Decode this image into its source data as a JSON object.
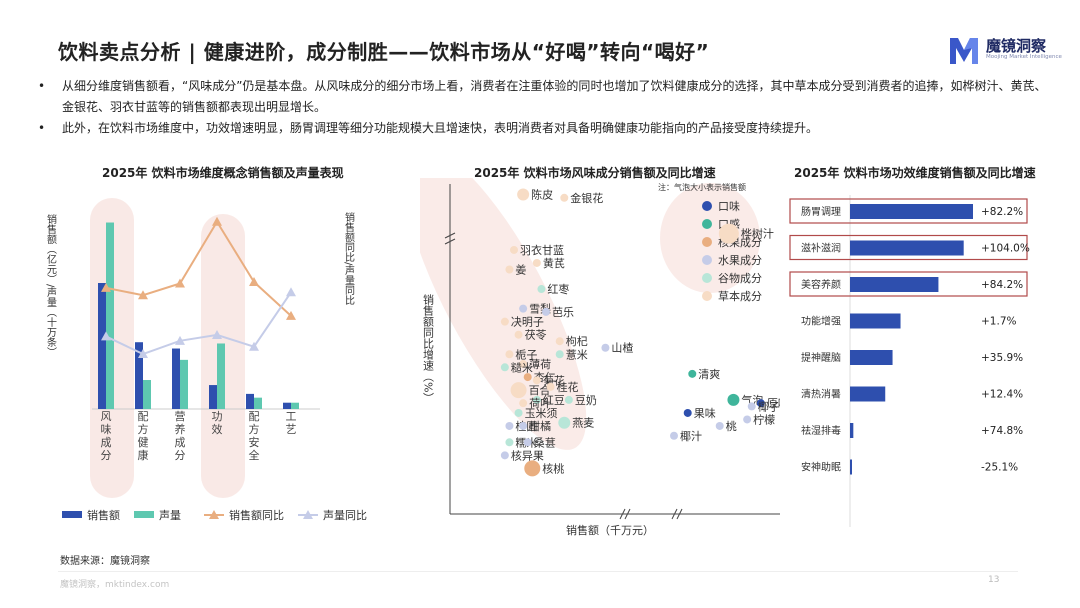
{
  "header": {
    "title": "饮料卖点分析 | 健康进阶，成分制胜——饮料市场从“好喝”转向“喝好”",
    "logo_name": "魔镜洞察",
    "logo_sub": "Moojing Market Intelligence"
  },
  "bullets": [
    {
      "dot": "•",
      "text": "从细分维度销售额看，“风味成分”仍是基本盘。从风味成分的细分市场上看，消费者在注重体验的同时也增加了饮料健康成分的选择，其中草本成分受到消费者的追捧，如桦树汁、黄芪、金银花、羽衣甘蓝等的销售额都表现出明显增长。"
    },
    {
      "dot": "•",
      "text": "此外，在饮料市场维度中，功效增速明显，肠胃调理等细分功能规模大且增速快，表明消费者对具备明确健康功能指向的产品接受度持续提升。"
    }
  ],
  "chart_data": [
    {
      "type": "bar",
      "title": "2025年 饮料市场维度概念销售额及声量表现",
      "categories": [
        "风味成分",
        "配方健康",
        "营养成分",
        "功效",
        "配方安全",
        "工艺"
      ],
      "ylabel_left": "销售额（亿元）/声量（十万条）",
      "ylabel_right": "销售额同比/声量同比",
      "series": [
        {
          "name": "销售额",
          "kind": "bar",
          "color": "#2E4FAE",
          "values": [
            100,
            53,
            48,
            19,
            12,
            5
          ]
        },
        {
          "name": "声量",
          "kind": "bar",
          "color": "#5EC8B0",
          "values": [
            148,
            23,
            39,
            52,
            9,
            5
          ]
        },
        {
          "name": "销售额同比",
          "kind": "line",
          "color": "#E9AE80",
          "values": [
            0.3,
            0.25,
            0.33,
            0.75,
            0.34,
            0.11
          ]
        },
        {
          "name": "声量同比",
          "kind": "line",
          "color": "#C5CCE8",
          "values": [
            -0.03,
            -0.15,
            -0.06,
            -0.02,
            -0.1,
            0.27
          ]
        }
      ]
    },
    {
      "type": "scatter",
      "title": "2025年 饮料市场风味成分销售额及同比增速",
      "note": "注：气泡大小表示销售额",
      "xlabel": "销售额（千万元）",
      "ylabel": "销售额同比增速（%）",
      "legend": [
        {
          "name": "口味",
          "color": "#2E4FAE"
        },
        {
          "name": "口感",
          "color": "#3FB59B"
        },
        {
          "name": "核果成分",
          "color": "#E9AE80"
        },
        {
          "name": "水果成分",
          "color": "#C5CCE8"
        },
        {
          "name": "谷物成分",
          "color": "#B8E6D8"
        },
        {
          "name": "草本成分",
          "color": "#F7DCC5"
        }
      ],
      "points": [
        {
          "label": "陈皮",
          "group": "草本成分",
          "x": 1.6,
          "y": 98,
          "size": 2
        },
        {
          "label": "金银花",
          "group": "草本成分",
          "x": 2.5,
          "y": 97,
          "size": 1
        },
        {
          "label": "桦树汁",
          "group": "草本成分",
          "x": 6.1,
          "y": 86,
          "size": 4
        },
        {
          "label": "羽衣甘蓝",
          "group": "草本成分",
          "x": 1.4,
          "y": 81,
          "size": 1
        },
        {
          "label": "黄芪",
          "group": "草本成分",
          "x": 1.9,
          "y": 77,
          "size": 1
        },
        {
          "label": "姜",
          "group": "草本成分",
          "x": 1.3,
          "y": 75,
          "size": 1
        },
        {
          "label": "红枣",
          "group": "谷物成分",
          "x": 2.0,
          "y": 69,
          "size": 1
        },
        {
          "label": "雪梨",
          "group": "水果成分",
          "x": 1.6,
          "y": 63,
          "size": 1
        },
        {
          "label": "芭乐",
          "group": "水果成分",
          "x": 2.1,
          "y": 62,
          "size": 1
        },
        {
          "label": "决明子",
          "group": "草本成分",
          "x": 1.2,
          "y": 59,
          "size": 1
        },
        {
          "label": "茯苓",
          "group": "草本成分",
          "x": 1.5,
          "y": 55,
          "size": 1
        },
        {
          "label": "枸杞",
          "group": "草本成分",
          "x": 2.4,
          "y": 53,
          "size": 1
        },
        {
          "label": "山楂",
          "group": "水果成分",
          "x": 3.4,
          "y": 51,
          "size": 1
        },
        {
          "label": "薏米",
          "group": "谷物成分",
          "x": 2.4,
          "y": 49,
          "size": 1
        },
        {
          "label": "栀子",
          "group": "草本成分",
          "x": 1.3,
          "y": 49,
          "size": 1
        },
        {
          "label": "薄荷",
          "group": "草本成分",
          "x": 1.6,
          "y": 46,
          "size": 1
        },
        {
          "label": "糙米",
          "group": "谷物成分",
          "x": 1.2,
          "y": 45,
          "size": 1
        },
        {
          "label": "杏仁",
          "group": "核果成分",
          "x": 1.7,
          "y": 42,
          "size": 1
        },
        {
          "label": "菊花",
          "group": "草本成分",
          "x": 1.9,
          "y": 41,
          "size": 1
        },
        {
          "label": "百合",
          "group": "草本成分",
          "x": 1.5,
          "y": 38,
          "size": 3
        },
        {
          "label": "桂花",
          "group": "草本成分",
          "x": 2.2,
          "y": 39,
          "size": 1
        },
        {
          "label": "清爽",
          "group": "口感",
          "x": 5.3,
          "y": 43,
          "size": 1
        },
        {
          "label": "气泡",
          "group": "口感",
          "x": 6.2,
          "y": 35,
          "size": 2
        },
        {
          "label": "红豆",
          "group": "谷物成分",
          "x": 1.9,
          "y": 35,
          "size": 1
        },
        {
          "label": "豆奶",
          "group": "谷物成分",
          "x": 2.6,
          "y": 35,
          "size": 1
        },
        {
          "label": "原味",
          "group": "口味",
          "x": 6.8,
          "y": 34,
          "size": 1
        },
        {
          "label": "荷叶",
          "group": "草本成分",
          "x": 1.6,
          "y": 34,
          "size": 1
        },
        {
          "label": "椰子",
          "group": "水果成分",
          "x": 6.6,
          "y": 33,
          "size": 1
        },
        {
          "label": "玉米须",
          "group": "谷物成分",
          "x": 1.5,
          "y": 31,
          "size": 1
        },
        {
          "label": "果味",
          "group": "口味",
          "x": 5.2,
          "y": 31,
          "size": 1
        },
        {
          "label": "柠檬",
          "group": "水果成分",
          "x": 6.5,
          "y": 29,
          "size": 1
        },
        {
          "label": "燕麦",
          "group": "谷物成分",
          "x": 2.5,
          "y": 28,
          "size": 2
        },
        {
          "label": "桂圆",
          "group": "水果成分",
          "x": 1.3,
          "y": 27,
          "size": 1
        },
        {
          "label": "柑橘",
          "group": "水果成分",
          "x": 1.6,
          "y": 27,
          "size": 1
        },
        {
          "label": "桃",
          "group": "水果成分",
          "x": 5.9,
          "y": 27,
          "size": 1
        },
        {
          "label": "椰汁",
          "group": "水果成分",
          "x": 4.9,
          "y": 24,
          "size": 1
        },
        {
          "label": "糯米",
          "group": "谷物成分",
          "x": 1.3,
          "y": 22,
          "size": 1
        },
        {
          "label": "桑葚",
          "group": "水果成分",
          "x": 1.7,
          "y": 22,
          "size": 1
        },
        {
          "label": "核异果",
          "group": "水果成分",
          "x": 1.2,
          "y": 18,
          "size": 1
        },
        {
          "label": "核桃",
          "group": "核果成分",
          "x": 1.8,
          "y": 14,
          "size": 3
        }
      ]
    },
    {
      "type": "bar",
      "orientation": "horizontal",
      "title": "2025年 饮料市场功效维度销售额及同比增速",
      "categories": [
        "肠胃调理",
        "滋补滋润",
        "美容养颜",
        "功能增强",
        "提神醒脑",
        "清热消暑",
        "祛湿排毒",
        "安神助眠"
      ],
      "values": [
        18.5,
        17.1,
        13.3,
        7.6,
        6.4,
        5.3,
        0.5,
        0.2
      ],
      "growth_labels": [
        "+82.2%",
        "+104.0%",
        "+84.2%",
        "+1.7%",
        "+35.9%",
        "+12.4%",
        "+74.8%",
        "-25.1%"
      ],
      "highlighted": [
        "肠胃调理",
        "滋补滋润",
        "美容养颜"
      ]
    }
  ],
  "source": "数据来源：魔镜洞察",
  "footer": "魔镜洞察，mktindex.com",
  "page_number": "13",
  "colors": {
    "primary": "#2E4FAE",
    "teal": "#5EC8B0",
    "orange": "#E9AE80",
    "lavender": "#C5CCE8",
    "highlight_border": "#B14A4A"
  }
}
